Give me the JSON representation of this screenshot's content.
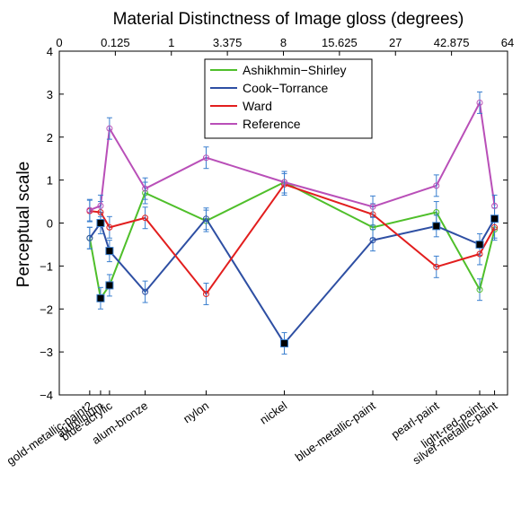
{
  "chart_data": {
    "type": "line",
    "title": "Material Distinctness of Image gloss (degrees)",
    "ylabel": "Perceptual scale",
    "xlabel": "",
    "ylim": [
      -4,
      4
    ],
    "yticks": [
      -4,
      -3,
      -2,
      -1,
      0,
      1,
      2,
      3,
      4
    ],
    "top_axis_ticks": [
      {
        "label": "0",
        "x": 0
      },
      {
        "label": "0.125",
        "x": 0.125
      },
      {
        "label": "1",
        "x": 1
      },
      {
        "label": "3.375",
        "x": 3.375
      },
      {
        "label": "8",
        "x": 8
      },
      {
        "label": "15.625",
        "x": 15.625
      },
      {
        "label": "27",
        "x": 27
      },
      {
        "label": "42.875",
        "x": 42.875
      },
      {
        "label": "64",
        "x": 64
      }
    ],
    "categories": [
      {
        "label": "gold-metallic-paint2",
        "x": 0.02
      },
      {
        "label": "aluminium",
        "x": 0.05
      },
      {
        "label": "blue-acrylic",
        "x": 0.09
      },
      {
        "label": "alum-bronze",
        "x": 0.45
      },
      {
        "label": "nylon",
        "x": 2.25
      },
      {
        "label": "nickel",
        "x": 8.1
      },
      {
        "label": "blue-metallic-paint",
        "x": 21.9
      },
      {
        "label": "pearl-paint",
        "x": 38.1
      },
      {
        "label": "light-red-paint",
        "x": 52.8
      },
      {
        "label": "silver-metallic-paint",
        "x": 58.6
      }
    ],
    "series": [
      {
        "name": "Ashikhmin-Shirley",
        "color": "#4fbf2a",
        "values": [
          -0.35,
          -1.75,
          -1.45,
          0.7,
          0.05,
          0.95,
          -0.1,
          0.25,
          -1.55,
          -0.15
        ],
        "errors": [
          0.25,
          0.25,
          0.25,
          0.25,
          0.25,
          0.25,
          0.25,
          0.25,
          0.25,
          0.25
        ]
      },
      {
        "name": "Cook-Torrance",
        "color": "#2e4fa3",
        "values": [
          -0.35,
          0.0,
          -0.65,
          -1.6,
          0.1,
          -2.8,
          -0.4,
          -0.07,
          -0.5,
          0.1
        ],
        "errors": [
          0.25,
          0.25,
          0.25,
          0.25,
          0.25,
          0.25,
          0.25,
          0.25,
          0.25,
          0.25
        ]
      },
      {
        "name": "Ward",
        "color": "#e21e1e",
        "values": [
          0.28,
          0.25,
          -0.1,
          0.12,
          -1.65,
          0.9,
          0.2,
          -1.02,
          -0.72,
          -0.1
        ],
        "errors": [
          0.25,
          0.25,
          0.25,
          0.25,
          0.25,
          0.25,
          0.25,
          0.25,
          0.25,
          0.25
        ]
      },
      {
        "name": "Reference",
        "color": "#b94fb8",
        "values": [
          0.3,
          0.4,
          2.2,
          0.8,
          1.52,
          0.95,
          0.38,
          0.87,
          2.8,
          0.4
        ],
        "errors": [
          0.25,
          0.25,
          0.25,
          0.25,
          0.25,
          0.25,
          0.25,
          0.25,
          0.25,
          0.25
        ]
      }
    ],
    "square_markers": [
      {
        "category": "aluminium",
        "value": -1.75
      },
      {
        "category": "aluminium",
        "value": 0.0
      },
      {
        "category": "blue-acrylic",
        "value": -1.45
      },
      {
        "category": "blue-acrylic",
        "value": -0.65
      },
      {
        "category": "nickel",
        "value": -2.8
      },
      {
        "category": "pearl-paint",
        "value": -0.07
      },
      {
        "category": "light-red-paint",
        "value": -0.5
      },
      {
        "category": "silver-metallic-paint",
        "value": 0.1
      }
    ],
    "legend_position": "top-center",
    "grid": false,
    "error_bar_color": "#3a7fcf"
  }
}
